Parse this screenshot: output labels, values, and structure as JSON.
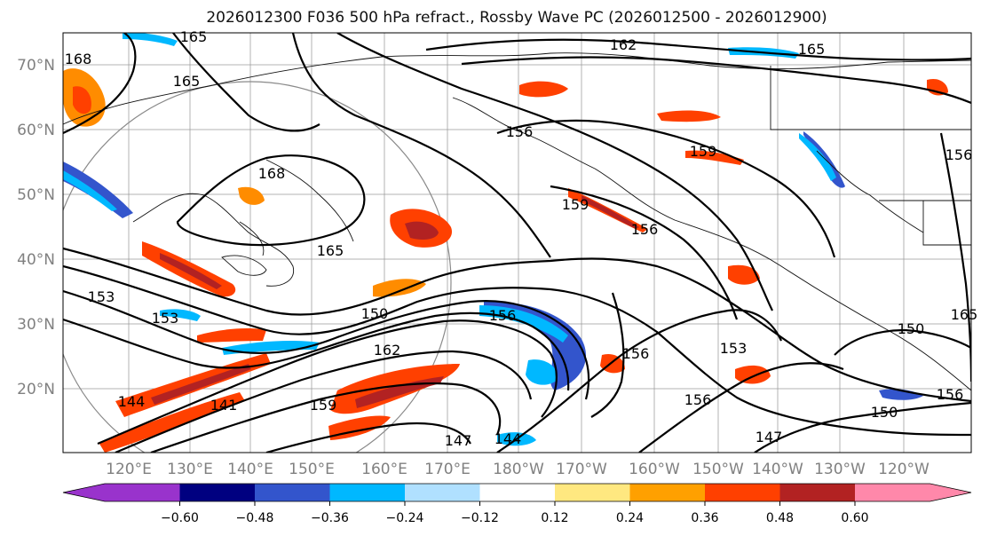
{
  "title": "2026012300 F036 500 hPa refract., Rossby Wave PC (2026012500 - 2026012900)",
  "lat_labels": [
    "70°N",
    "60°N",
    "50°N",
    "40°N",
    "30°N",
    "20°N"
  ],
  "lon_labels": [
    "120°E",
    "130°E",
    "140°E",
    "150°E",
    "160°E",
    "170°E",
    "180°W",
    "170°W",
    "160°W",
    "150°W",
    "140°W",
    "130°W",
    "120°W"
  ],
  "contour_labels": [
    "162",
    "165",
    "168",
    "165",
    "156",
    "159",
    "156",
    "159",
    "156",
    "165",
    "168",
    "165",
    "153",
    "153",
    "150",
    "156",
    "162",
    "159",
    "147",
    "144",
    "141",
    "144",
    "147",
    "150",
    "153",
    "156",
    "156",
    "150",
    "156",
    "165"
  ],
  "colorbar": {
    "colors": [
      "#9933cc",
      "#000080",
      "#3355cc",
      "#00b8ff",
      "#b0e0ff",
      "#ffffff",
      "#ffe880",
      "#ffa000",
      "#ff4000",
      "#b22222",
      "#ff88aa"
    ],
    "tick_labels": [
      "−0.60",
      "−0.48",
      "−0.36",
      "−0.24",
      "−0.12",
      "0.12",
      "0.24",
      "0.36",
      "0.48",
      "0.60"
    ]
  }
}
